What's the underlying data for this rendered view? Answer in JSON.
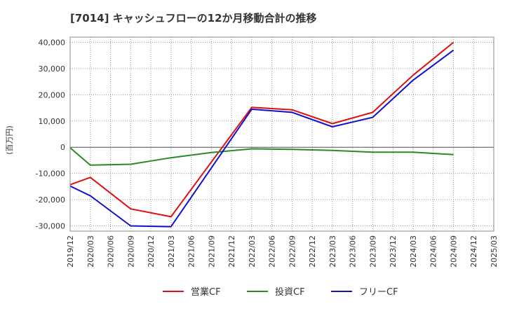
{
  "chart_data": {
    "type": "line",
    "title": "[7014]  キャッシュフローの12か月移動合計の推移",
    "ylabel": "(百万円)",
    "xlabel": "",
    "ylim": [
      -32000,
      42000
    ],
    "yticks": [
      40000,
      30000,
      20000,
      10000,
      0,
      -10000,
      -20000,
      -30000
    ],
    "ytick_labels": [
      "40,000",
      "30,000",
      "20,000",
      "10,000",
      "0",
      "-10,000",
      "-20,000",
      "-30,000"
    ],
    "categories": [
      "2019/12",
      "2020/03",
      "2020/06",
      "2020/09",
      "2020/12",
      "2021/03",
      "2021/06",
      "2021/09",
      "2021/12",
      "2022/03",
      "2022/06",
      "2022/09",
      "2022/12",
      "2023/03",
      "2023/06",
      "2023/09",
      "2023/12",
      "2024/03",
      "2024/06",
      "2024/09",
      "2024/12",
      "2025/03"
    ],
    "grid": true,
    "legend_position": "bottom-center",
    "series": [
      {
        "name": "営業CF",
        "color": "#dd1111",
        "points": [
          [
            "2019/12",
            -14300
          ],
          [
            "2020/03",
            -11500
          ],
          [
            "2020/09",
            -23500
          ],
          [
            "2021/03",
            -26500
          ],
          [
            "2022/03",
            15200
          ],
          [
            "2022/09",
            14300
          ],
          [
            "2023/03",
            9000
          ],
          [
            "2023/09",
            13300
          ],
          [
            "2024/03",
            27500
          ],
          [
            "2024/09",
            40000
          ]
        ]
      },
      {
        "name": "投資CF",
        "color": "#2a8a2a",
        "points": [
          [
            "2019/12",
            -200
          ],
          [
            "2020/03",
            -6800
          ],
          [
            "2020/09",
            -6500
          ],
          [
            "2021/03",
            -4000
          ],
          [
            "2021/09",
            -2000
          ],
          [
            "2022/03",
            -600
          ],
          [
            "2022/09",
            -800
          ],
          [
            "2023/03",
            -1200
          ],
          [
            "2023/09",
            -1900
          ],
          [
            "2024/03",
            -1900
          ],
          [
            "2024/09",
            -2800
          ]
        ]
      },
      {
        "name": "フリーCF",
        "color": "#1111cc",
        "points": [
          [
            "2019/12",
            -14800
          ],
          [
            "2020/03",
            -18500
          ],
          [
            "2020/09",
            -30000
          ],
          [
            "2021/03",
            -30300
          ],
          [
            "2022/03",
            14500
          ],
          [
            "2022/09",
            13300
          ],
          [
            "2023/03",
            7800
          ],
          [
            "2023/09",
            11400
          ],
          [
            "2024/03",
            25600
          ],
          [
            "2024/09",
            37000
          ]
        ]
      }
    ]
  }
}
